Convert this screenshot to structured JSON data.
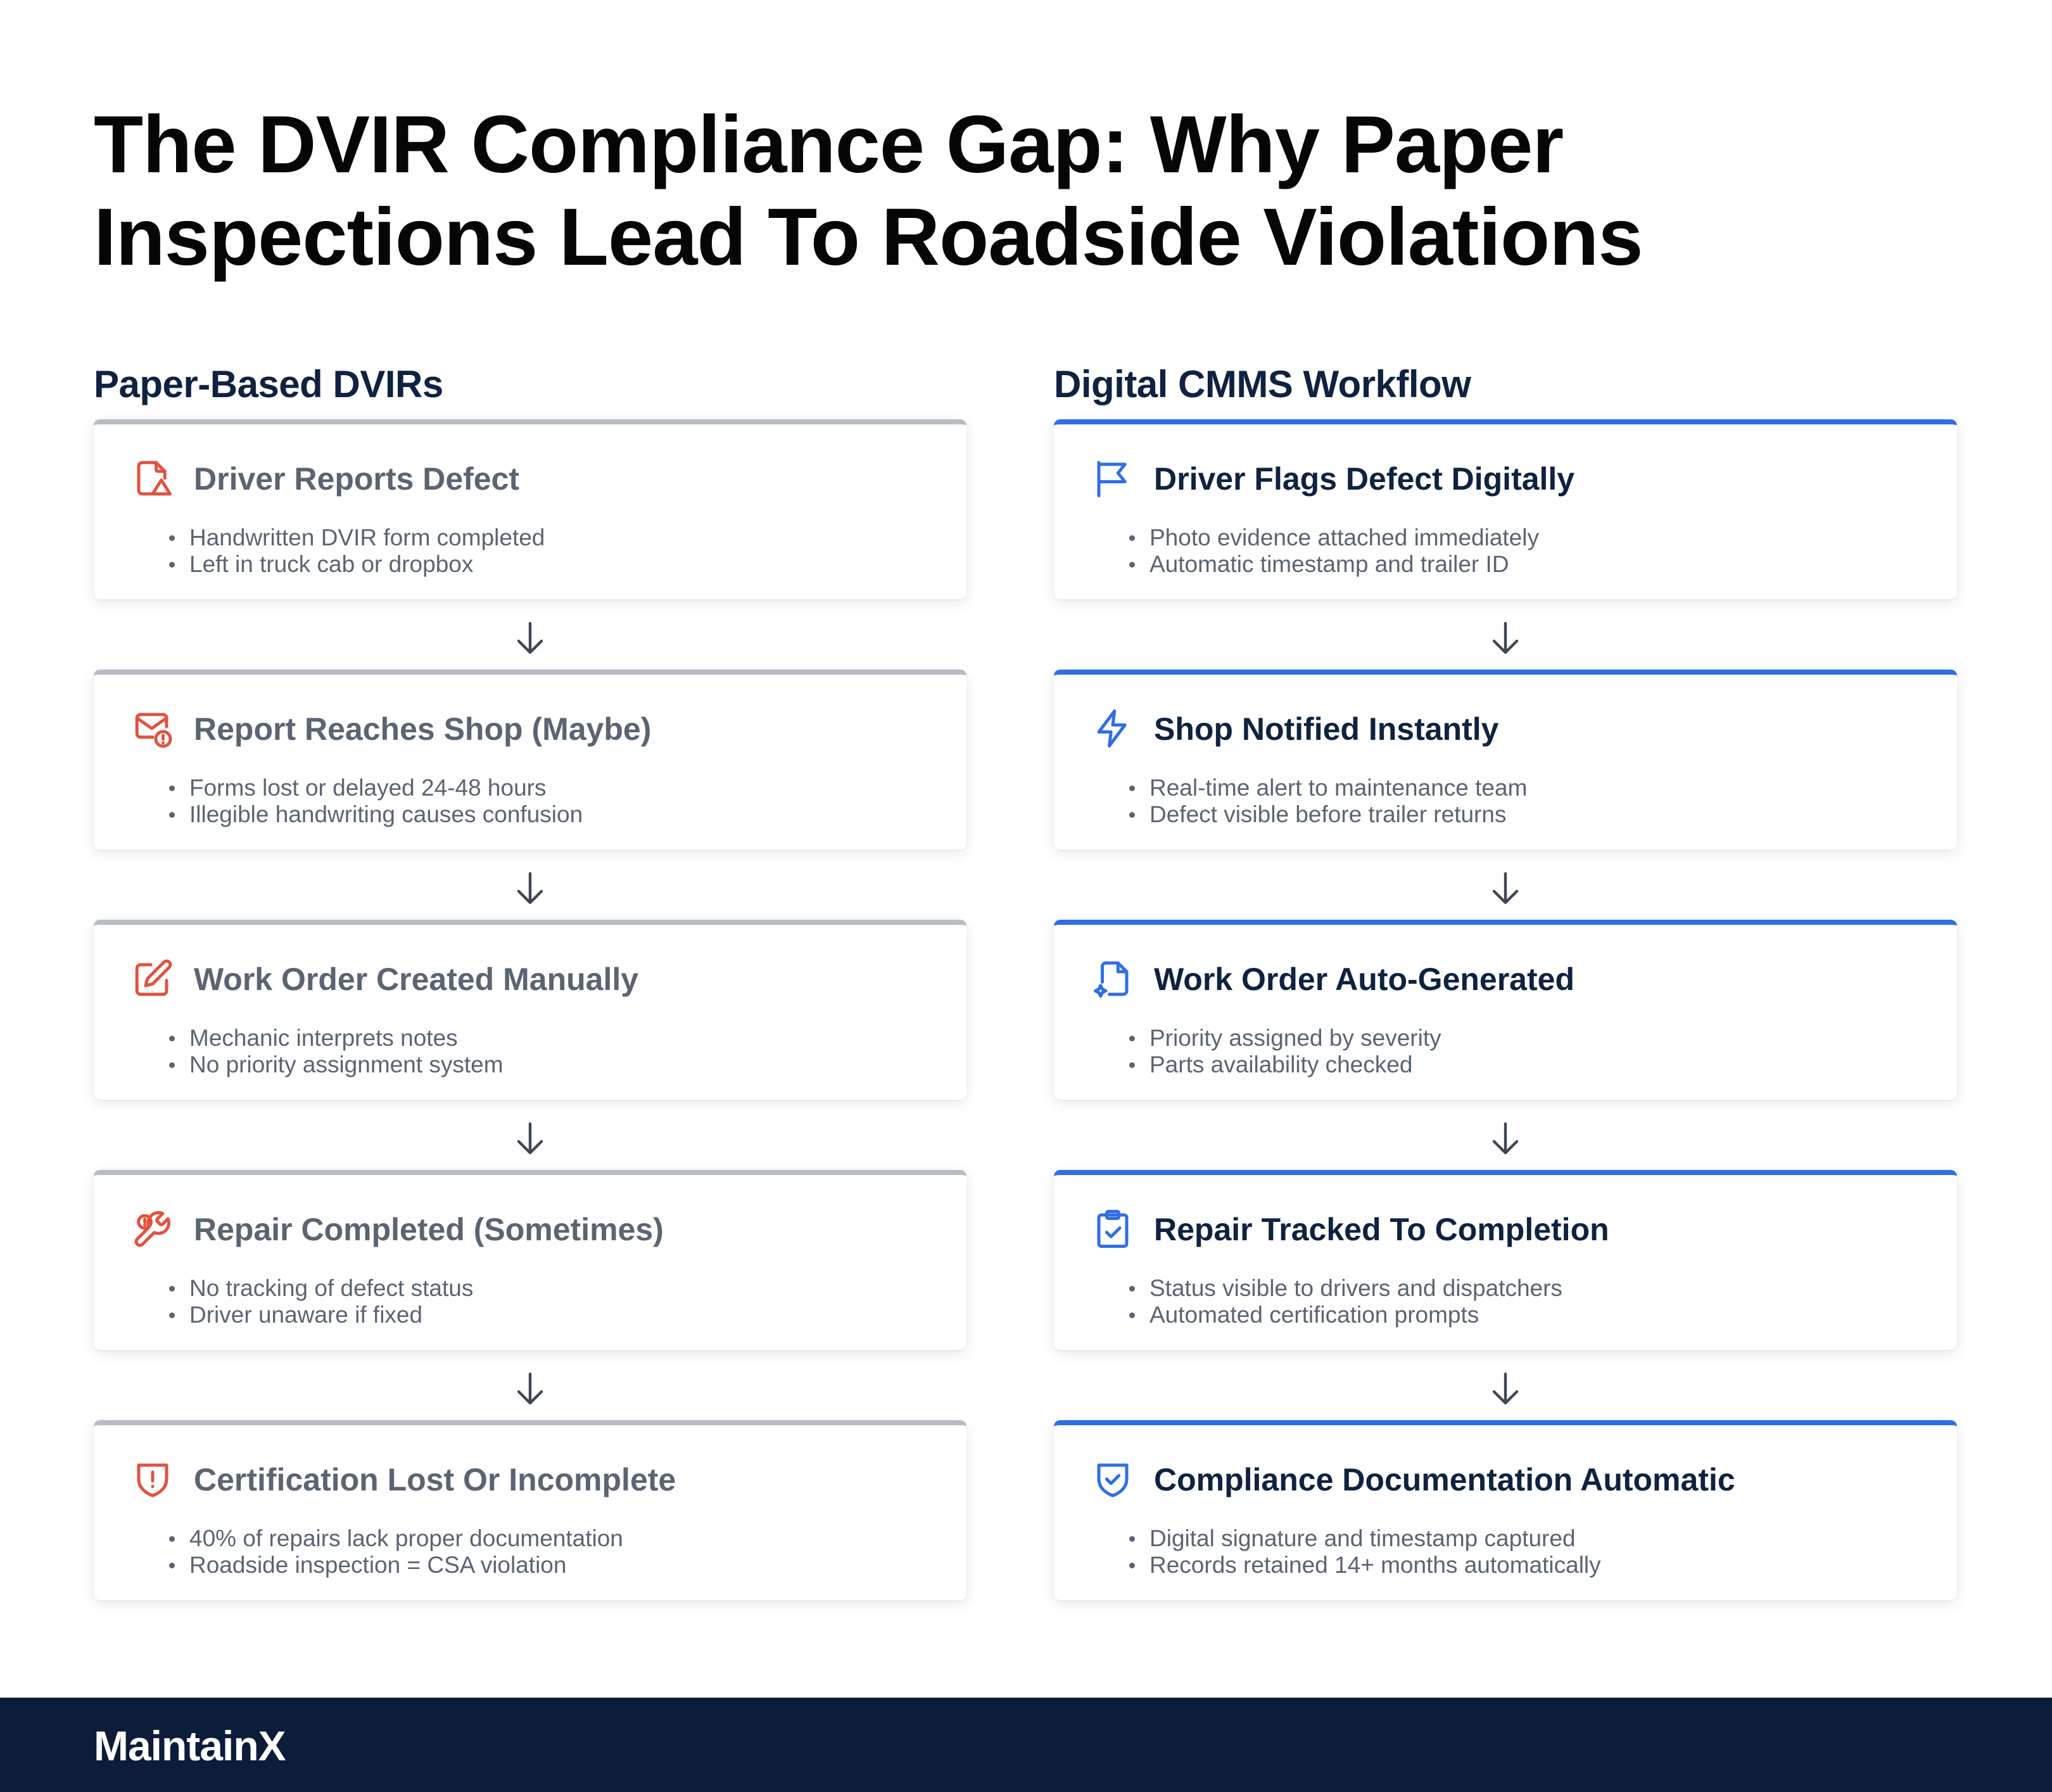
{
  "title_line1": "The DVIR Compliance Gap: Why Paper",
  "title_line2": "Inspections Lead To Roadside Violations",
  "columns": {
    "paper": {
      "heading": "Paper-Based DVIRs",
      "accent": "#b8bcc4",
      "icon_color": "#e0533f",
      "steps": [
        {
          "icon": "document-warning-icon",
          "title": "Driver Reports Defect",
          "bullets": [
            "Handwritten DVIR form completed",
            "Left in truck cab or dropbox"
          ]
        },
        {
          "icon": "mail-alert-icon",
          "title": "Report Reaches Shop (Maybe)",
          "bullets": [
            "Forms lost or delayed 24-48 hours",
            "Illegible handwriting causes confusion"
          ]
        },
        {
          "icon": "edit-form-icon",
          "title": "Work Order Created Manually",
          "bullets": [
            "Mechanic interprets notes",
            "No priority assignment system"
          ]
        },
        {
          "icon": "wrench-alert-icon",
          "title": "Repair Completed (Sometimes)",
          "bullets": [
            "No tracking of defect status",
            "Driver unaware if fixed"
          ]
        },
        {
          "icon": "shield-alert-icon",
          "title": "Certification Lost Or Incomplete",
          "bullets": [
            "40% of repairs lack proper documentation",
            "Roadside inspection = CSA violation"
          ]
        }
      ]
    },
    "digital": {
      "heading": "Digital CMMS Workflow",
      "accent": "#2f6ee6",
      "icon_color": "#2f6ee6",
      "steps": [
        {
          "icon": "flag-icon",
          "title": "Driver Flags Defect Digitally",
          "bullets": [
            "Photo evidence attached immediately",
            "Automatic timestamp and trailer ID"
          ]
        },
        {
          "icon": "lightning-icon",
          "title": "Shop Notified Instantly",
          "bullets": [
            "Real-time alert to maintenance team",
            "Defect visible before trailer returns"
          ]
        },
        {
          "icon": "document-sparkle-icon",
          "title": "Work Order Auto-Generated",
          "bullets": [
            "Priority assigned by severity",
            "Parts availability checked"
          ]
        },
        {
          "icon": "clipboard-check-icon",
          "title": "Repair Tracked To Completion",
          "bullets": [
            "Status visible to drivers and dispatchers",
            "Automated certification prompts"
          ]
        },
        {
          "icon": "shield-check-icon",
          "title": "Compliance Documentation Automatic",
          "bullets": [
            "Digital signature and timestamp captured",
            "Records retained 14+ months automatically"
          ]
        }
      ]
    }
  },
  "footer": {
    "logo": "MaintainX",
    "background": "#0c1d3a"
  }
}
